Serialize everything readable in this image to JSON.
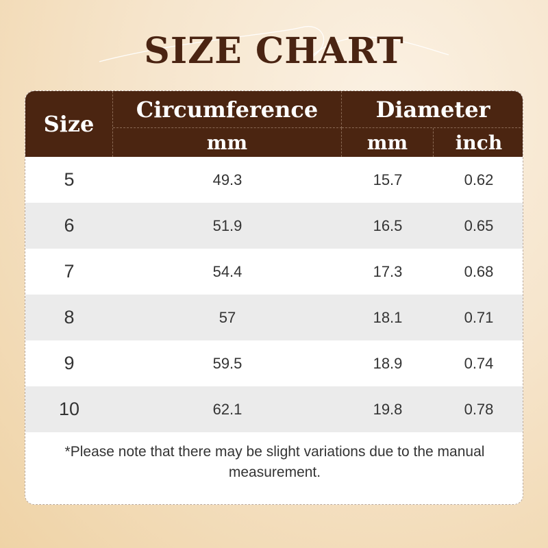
{
  "title": "SIZE CHART",
  "colors": {
    "header_bg": "#4b2511",
    "title": "#4a2412",
    "alt_row": "#ebebeb"
  },
  "header": {
    "size": "Size",
    "circumference": "Circumference",
    "diameter": "Diameter",
    "circ_unit": "mm",
    "diam_unit_mm": "mm",
    "diam_unit_inch": "inch"
  },
  "chart_data": {
    "type": "table",
    "columns": [
      "Size",
      "Circumference mm",
      "Diameter mm",
      "Diameter inch"
    ],
    "rows": [
      [
        "5",
        "49.3",
        "15.7",
        "0.62"
      ],
      [
        "6",
        "51.9",
        "16.5",
        "0.65"
      ],
      [
        "7",
        "54.4",
        "17.3",
        "0.68"
      ],
      [
        "8",
        "57",
        "18.1",
        "0.71"
      ],
      [
        "9",
        "59.5",
        "18.9",
        "0.74"
      ],
      [
        "10",
        "62.1",
        "19.8",
        "0.78"
      ]
    ]
  },
  "note": "*Please note that there may be slight variations due to the manual measurement."
}
